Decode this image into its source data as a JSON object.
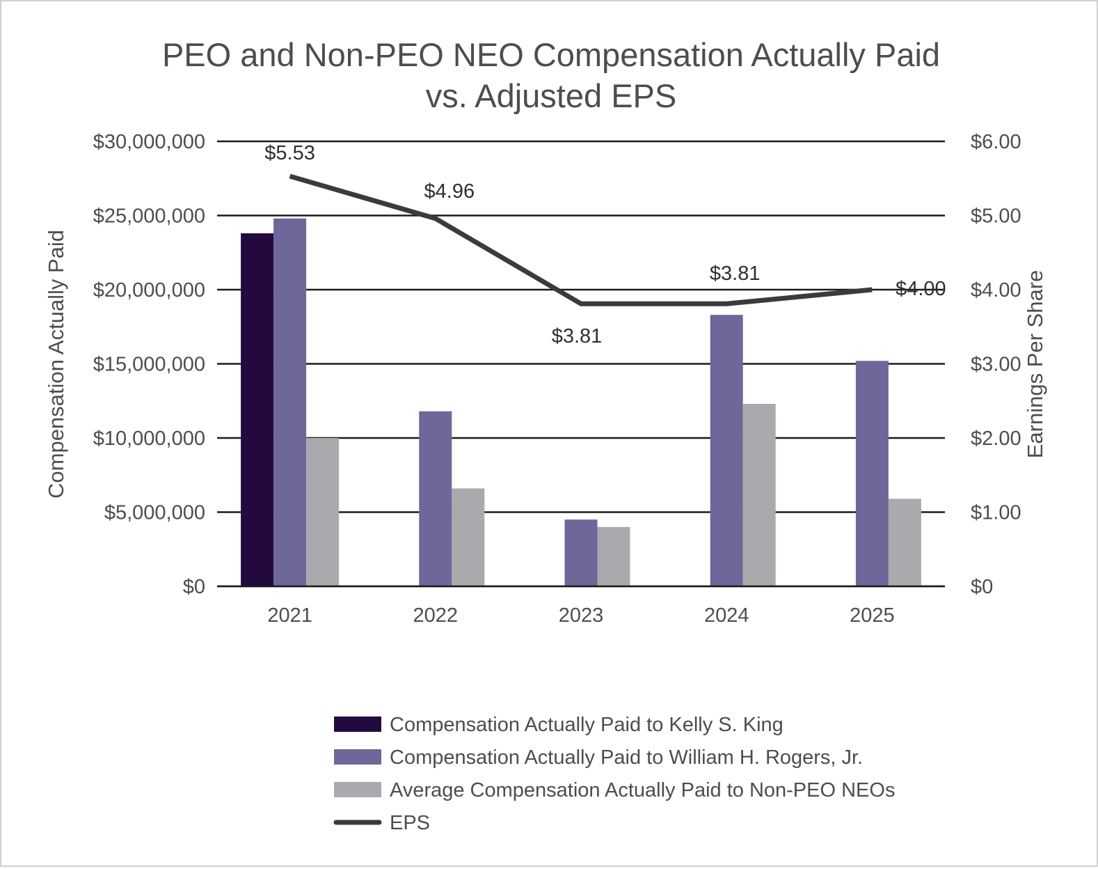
{
  "chart_data": {
    "type": "bar",
    "title": [
      "PEO and Non-PEO NEO Compensation Actually Paid",
      "vs. Adjusted EPS"
    ],
    "categories": [
      "2021",
      "2022",
      "2023",
      "2024",
      "2025"
    ],
    "series": [
      {
        "name": "Compensation Actually Paid to Kelly S. King",
        "type": "bar",
        "color": "#230a3e",
        "values": [
          23800000,
          null,
          null,
          null,
          null
        ]
      },
      {
        "name": "Compensation Actually Paid to William H. Rogers, Jr.",
        "type": "bar",
        "color": "#6f6699",
        "values": [
          24800000,
          11800000,
          4500000,
          18300000,
          15200000
        ]
      },
      {
        "name": "Average Compensation Actually Paid to Non-PEO NEOs",
        "type": "bar",
        "color": "#a9aaad",
        "values": [
          10000000,
          6600000,
          4000000,
          12300000,
          5900000
        ]
      },
      {
        "name": "EPS",
        "type": "line",
        "axis": "right",
        "color": "#3a3b3e",
        "values": [
          5.53,
          4.96,
          3.81,
          3.81,
          4.0
        ],
        "labels": [
          "$5.53",
          "$4.96",
          "$3.81",
          "$3.81",
          "$4.00"
        ]
      }
    ],
    "ylabel_left": "Compensation Actually Paid",
    "ylabel_right": "Earnings Per Share",
    "ylim_left": [
      0,
      30000000
    ],
    "ylim_right": [
      0,
      6
    ],
    "yticks_left": [
      "$0",
      "$5,000,000",
      "$10,000,000",
      "$15,000,000",
      "$20,000,000",
      "$25,000,000",
      "$30,000,000"
    ],
    "yticks_right": [
      "$0",
      "$1.00",
      "$2.00",
      "$3.00",
      "$4.00",
      "$5.00",
      "$6.00"
    ],
    "grid": true,
    "legend_position": "bottom"
  }
}
